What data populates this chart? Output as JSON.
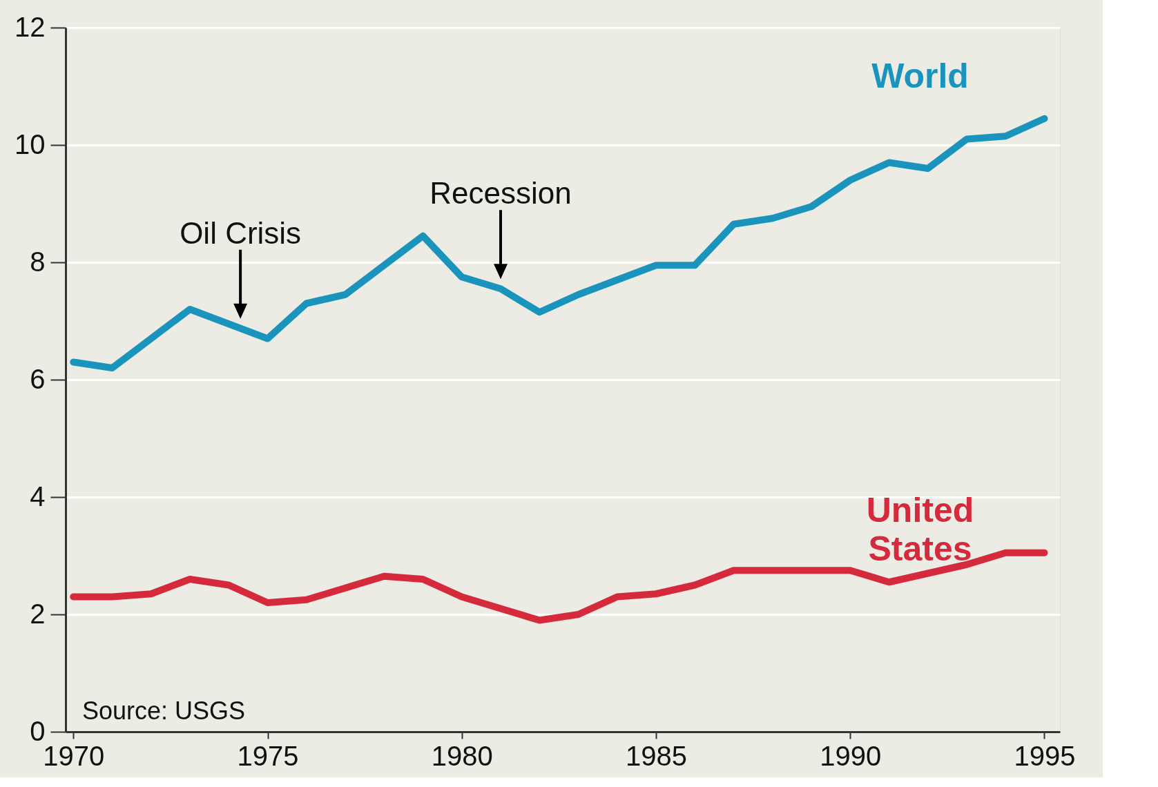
{
  "chart_data": {
    "type": "line",
    "x": [
      1970,
      1971,
      1972,
      1973,
      1974,
      1975,
      1976,
      1977,
      1978,
      1979,
      1980,
      1981,
      1982,
      1983,
      1984,
      1985,
      1986,
      1987,
      1988,
      1989,
      1990,
      1991,
      1992,
      1993,
      1994,
      1995
    ],
    "series": [
      {
        "name": "World",
        "color": "#1a94bd",
        "values": [
          6.3,
          6.2,
          6.7,
          7.2,
          6.95,
          6.7,
          7.3,
          7.45,
          7.95,
          8.45,
          7.75,
          7.55,
          7.15,
          7.45,
          7.7,
          7.95,
          7.95,
          8.65,
          8.75,
          8.95,
          9.4,
          9.7,
          9.6,
          10.1,
          10.15,
          10.45
        ]
      },
      {
        "name": "United States",
        "color": "#d42a3c",
        "values": [
          2.3,
          2.3,
          2.35,
          2.6,
          2.5,
          2.2,
          2.25,
          2.45,
          2.65,
          2.6,
          2.3,
          2.1,
          1.9,
          2.0,
          2.3,
          2.35,
          2.5,
          2.75,
          2.75,
          2.75,
          2.75,
          2.55,
          2.7,
          2.85,
          3.05,
          3.05
        ]
      }
    ],
    "xlim": [
      1969.8,
      1995.4
    ],
    "xticks": [
      1970,
      1975,
      1980,
      1985,
      1990,
      1995
    ],
    "ylim": [
      0,
      12
    ],
    "yticks": [
      0,
      2,
      4,
      6,
      8,
      10,
      12
    ],
    "grid": "y",
    "legend": false,
    "line_style": "solid",
    "annotations": [
      {
        "text": "Oil Crisis",
        "x": 1974.3,
        "y": 6.875
      },
      {
        "text": "Recession",
        "x": 1981.0,
        "y": 7.55
      },
      "Source: USGS"
    ]
  }
}
